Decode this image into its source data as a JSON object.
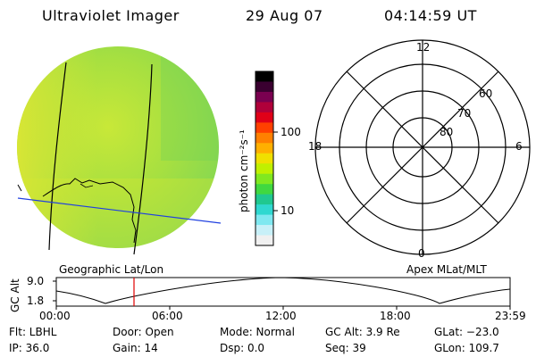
{
  "header": {
    "title": "Ultraviolet Imager",
    "date": "29 Aug 07",
    "time": "04:14:59  UT"
  },
  "colorbar": {
    "label": "photon cm⁻²s⁻¹",
    "ticks": [
      "100",
      "10"
    ],
    "colors": [
      "#000000",
      "#3a0030",
      "#7a0050",
      "#b0003a",
      "#e00018",
      "#ff4000",
      "#ff8000",
      "#ffb000",
      "#f0e000",
      "#c0f000",
      "#80e820",
      "#40d840",
      "#20c890",
      "#30d8d0",
      "#80e8f0",
      "#c8f0f8",
      "#f0f0f0"
    ]
  },
  "polar": {
    "labels": [
      "12",
      "18",
      "6",
      "0",
      "60",
      "70",
      "80"
    ]
  },
  "panel_labels": {
    "left": "Geographic Lat/Lon",
    "right": "Apex  MLat/MLT"
  },
  "alt_plot": {
    "axis_label": "GC Alt",
    "y_ticks": [
      "9.0",
      "1.8"
    ],
    "x_ticks": [
      "00:00",
      "06:00",
      "12:00",
      "18:00",
      "23:59"
    ]
  },
  "info": {
    "flt": "Flt: LBHL",
    "door": "Door: Open",
    "mode": "Mode: Normal",
    "gcalt": "GC Alt: 3.9 Re",
    "glat": "GLat: −23.0",
    "ip": "IP: 36.0",
    "gain": "Gain: 14",
    "dsp": "Dsp:      0.0",
    "seq": "Seq: 39",
    "glon": "GLon: 109.7"
  }
}
